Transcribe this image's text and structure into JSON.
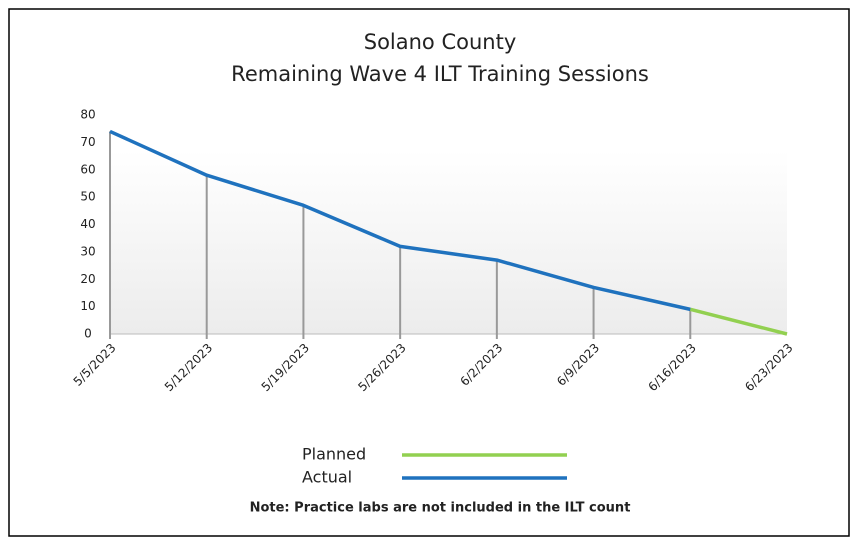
{
  "chart_data": {
    "type": "line",
    "title": "Solano County",
    "subtitle": "Remaining Wave 4 ILT Training Sessions",
    "categories": [
      "5/5/2023",
      "5/12/2023",
      "5/19/2023",
      "5/26/2023",
      "6/2/2023",
      "6/9/2023",
      "6/16/2023",
      "6/23/2023"
    ],
    "series": [
      {
        "name": "Planned",
        "color": "#92d050",
        "values": [
          null,
          null,
          null,
          null,
          null,
          null,
          9,
          0
        ]
      },
      {
        "name": "Actual",
        "color": "#1f72be",
        "values": [
          74,
          58,
          47,
          32,
          27,
          17,
          9,
          null
        ]
      }
    ],
    "ylim": [
      0,
      80
    ],
    "yticks": [
      0,
      10,
      20,
      30,
      40,
      50,
      60,
      70,
      80
    ],
    "drop_lines": true,
    "note": "Note: Practice labs are not included in the ILT count"
  }
}
